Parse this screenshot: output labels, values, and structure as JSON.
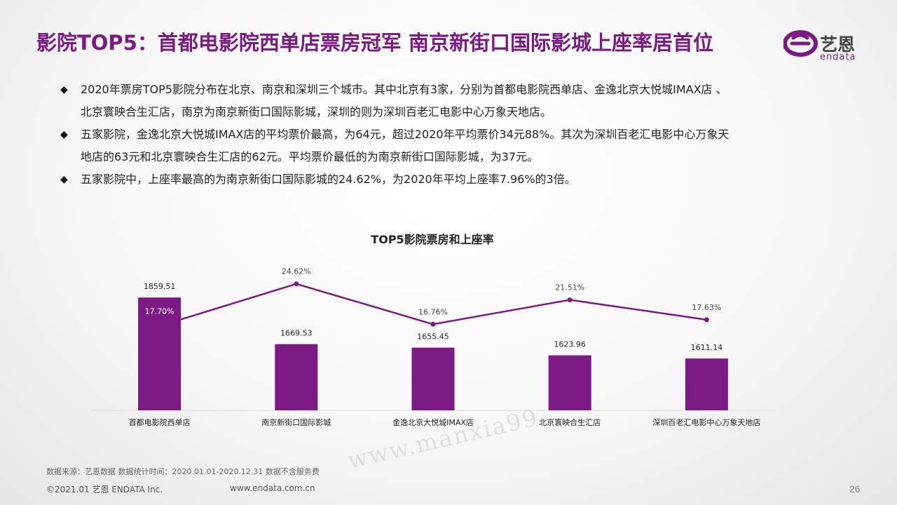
{
  "header": {
    "title": "影院TOP5：首都电影院西单店票房冠军 南京新街口国际影城上座率居首位",
    "logo_cn": "艺恩",
    "logo_en": "endata"
  },
  "bullets": [
    {
      "marker": "◆",
      "lines": [
        "2020年票房TOP5影院分布在北京、南京和深圳三个城市。其中北京有3家，分别为首都电影院西单店、金逸北京大悦城IMAX店 、",
        "北京寰映合生汇店，南京为南京新街口国际影城，深圳的则为深圳百老汇电影中心万象天地店。"
      ]
    },
    {
      "marker": "◆",
      "lines": [
        "五家影院，金逸北京大悦城IMAX店的平均票价最高，为64元，超过2020年平均票价34元88%。其次为深圳百老汇电影中心万象天",
        "地店的63元和北京寰映合生汇店的62元。平均票价最低的为南京新街口国际影城，为37元。"
      ]
    },
    {
      "marker": "◆",
      "lines": [
        "五家影院中，上座率最高的为南京新街口国际影城的24.62%，为2020年平均上座率7.96%的3倍。"
      ]
    }
  ],
  "chart_data": {
    "type": "bar",
    "title": "TOP5影院票房和上座率",
    "categories": [
      "首都电影院西单店",
      "南京新街口国际影城",
      "金逸北京大悦城IMAX店",
      "北京寰映合生汇店",
      "深圳百老汇电影中心万象天地店"
    ],
    "series": [
      {
        "name": "票房",
        "type": "bar",
        "values": [
          1859.51,
          1669.53,
          1655.45,
          1623.96,
          1611.14
        ],
        "labels": [
          "1859.51",
          "1669.53",
          "1655.45",
          "1623.96",
          "1611.14"
        ]
      },
      {
        "name": "上座率",
        "type": "line",
        "values": [
          17.7,
          24.62,
          16.76,
          21.51,
          17.63
        ],
        "labels": [
          "17.70%",
          "24.62%",
          "16.76%",
          "21.51%",
          "17.63%"
        ]
      }
    ],
    "bar_ylim": [
      1400,
      1900
    ],
    "line_ylim": [
      0,
      28
    ],
    "xlabel": "",
    "ylabel": "",
    "grid": false,
    "legend": "none",
    "colors": {
      "bar": "#7b1a82",
      "line": "#7b1a82",
      "axis": "#d9d9d9"
    }
  },
  "footer": {
    "source": "数据来源：艺恩数据   数据统计时间：2020.01.01-2020.12.31 数据不含服务费",
    "copyright": "©2021.01 艺恩 ENDATA Inc.",
    "url": "www.endata.com.cn",
    "page": "26",
    "watermark": "www.manxia99"
  }
}
